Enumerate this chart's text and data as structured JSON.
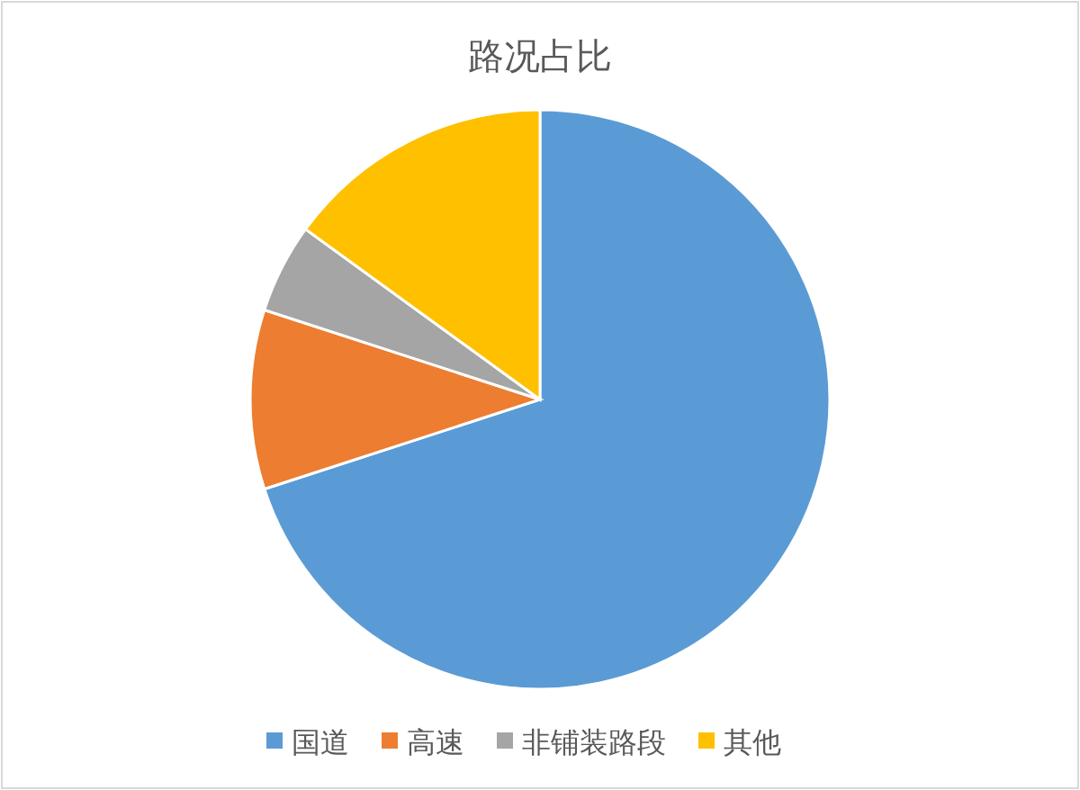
{
  "chart_data": {
    "type": "pie",
    "title": "路况占比",
    "categories": [
      "国道",
      "高速",
      "非铺装路段",
      "其他"
    ],
    "values": [
      70,
      10,
      5,
      15
    ],
    "colors": [
      "#5b9bd5",
      "#ed7d31",
      "#a5a5a5",
      "#ffc000"
    ],
    "legend": "bottom"
  }
}
